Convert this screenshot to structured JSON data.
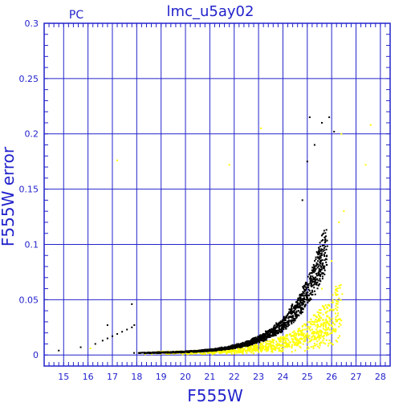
{
  "chart_data": {
    "type": "scatter",
    "title": "lmc_u5ay02",
    "corner_label": "PC",
    "xlabel": "F555W",
    "ylabel": "F555W error",
    "xlim": [
      14.2,
      28.4
    ],
    "ylim": [
      -0.01,
      0.3
    ],
    "x_ticks": [
      15,
      16,
      17,
      18,
      19,
      20,
      21,
      22,
      23,
      24,
      25,
      26,
      27,
      28
    ],
    "y_ticks": [
      0,
      0.05,
      0.1,
      0.15,
      0.2,
      0.25,
      0.3
    ],
    "y_tick_labels": [
      "0",
      "0.05",
      "0.1",
      "0.15",
      "0.2",
      "0.25",
      "0.3"
    ],
    "grid": true,
    "colors": {
      "axis": "#2222cc",
      "series_black": "#000000",
      "series_yellow": "#ffff00",
      "background": "#ffffff"
    },
    "series": [
      {
        "color_key": "series_yellow",
        "trend": {
          "x_start": 18.0,
          "x_end": 26.4,
          "y_base": 0.0018,
          "y_amp": 0.036,
          "x_ref": 26.0,
          "scale": 1.55,
          "spread": 0.45
        },
        "sample_points": [
          {
            "x": 17.2,
            "y": 0.176
          },
          {
            "x": 21.8,
            "y": 0.172
          },
          {
            "x": 23.1,
            "y": 0.205
          },
          {
            "x": 27.6,
            "y": 0.208
          },
          {
            "x": 27.4,
            "y": 0.172
          },
          {
            "x": 26.4,
            "y": 0.2
          },
          {
            "x": 16.1,
            "y": 0.006
          },
          {
            "x": 24.8,
            "y": 0.02
          },
          {
            "x": 25.1,
            "y": 0.03
          },
          {
            "x": 25.6,
            "y": 0.06
          },
          {
            "x": 26.0,
            "y": 0.085
          },
          {
            "x": 26.3,
            "y": 0.12
          },
          {
            "x": 26.5,
            "y": 0.13
          },
          {
            "x": 24.2,
            "y": 0.01
          },
          {
            "x": 23.5,
            "y": 0.008
          }
        ]
      },
      {
        "color_key": "series_black",
        "trend": {
          "x_start": 17.9,
          "x_end": 25.8,
          "y_base": 0.0015,
          "y_amp": 0.055,
          "x_ref": 25.0,
          "scale": 1.35,
          "spread": 0.2
        },
        "sample_points": [
          {
            "x": 14.8,
            "y": 0.004
          },
          {
            "x": 15.7,
            "y": 0.007
          },
          {
            "x": 16.3,
            "y": 0.01
          },
          {
            "x": 16.6,
            "y": 0.013
          },
          {
            "x": 16.8,
            "y": 0.015
          },
          {
            "x": 17.0,
            "y": 0.017
          },
          {
            "x": 17.2,
            "y": 0.019
          },
          {
            "x": 17.4,
            "y": 0.021
          },
          {
            "x": 17.6,
            "y": 0.023
          },
          {
            "x": 17.8,
            "y": 0.025
          },
          {
            "x": 17.9,
            "y": 0.027
          },
          {
            "x": 17.8,
            "y": 0.046
          },
          {
            "x": 16.8,
            "y": 0.027
          },
          {
            "x": 25.1,
            "y": 0.215
          },
          {
            "x": 25.9,
            "y": 0.215
          },
          {
            "x": 26.1,
            "y": 0.202
          },
          {
            "x": 24.8,
            "y": 0.14
          },
          {
            "x": 25.0,
            "y": 0.175
          },
          {
            "x": 25.3,
            "y": 0.19
          },
          {
            "x": 25.6,
            "y": 0.21
          }
        ]
      }
    ]
  }
}
